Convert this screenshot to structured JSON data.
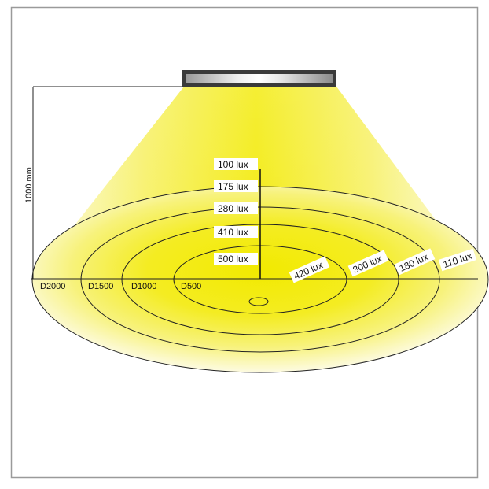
{
  "height_label": "1000 mm",
  "vertical_lux_labels": [
    "100 lux",
    "175 lux",
    "280 lux",
    "410 lux",
    "500 lux"
  ],
  "floor_lux_labels": [
    "420 lux",
    "300 lux",
    "180 lux",
    "110 lux"
  ],
  "distance_labels": [
    "D2000",
    "D1500",
    "D1000",
    "D500"
  ],
  "colors": {
    "light_core": "#f2ea00",
    "light_mid": "#f6f060",
    "light_edge": "#fbf8c8",
    "fixture_frame": "#3a3a3a",
    "fixture_lens": "#d8d8d8",
    "border": "#9a9a9a"
  }
}
